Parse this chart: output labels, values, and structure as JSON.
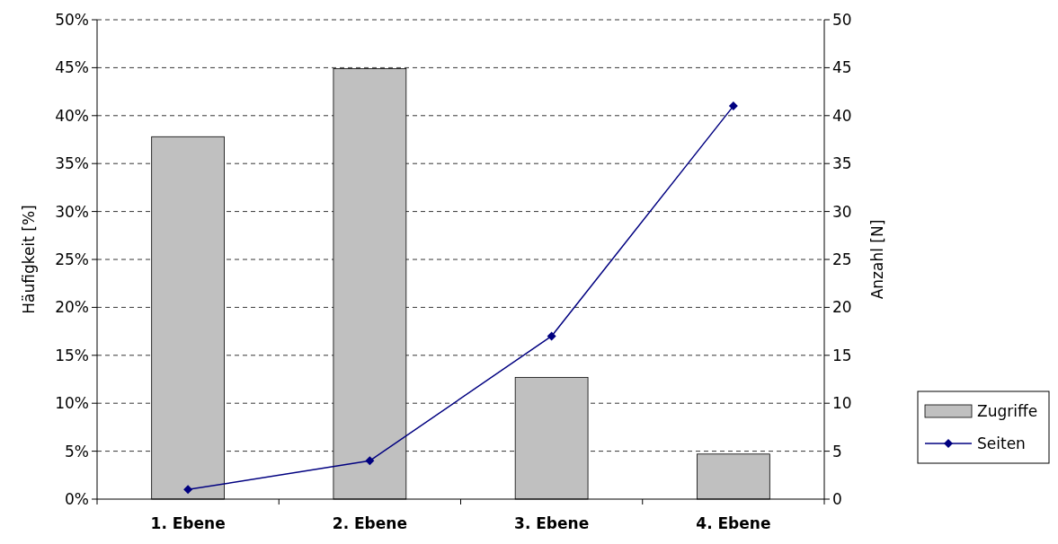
{
  "chart_data": {
    "type": "bar",
    "categories": [
      "1. Ebene",
      "2. Ebene",
      "3. Ebene",
      "4. Ebene"
    ],
    "series": [
      {
        "name": "Zugriffe",
        "color": "#c0c0c0",
        "values": [
          37.8,
          44.9,
          12.7,
          4.7
        ]
      },
      {
        "name": "Seiten",
        "type": "line",
        "axis": "y2",
        "color": "#000080",
        "marker": "diamond",
        "values": [
          1,
          4,
          17,
          41
        ]
      }
    ],
    "ylabel": "Häufigkeit [%]",
    "y2label": "Anzahl [N]",
    "ylim": [
      0,
      50
    ],
    "yticks": [
      {
        "value": 0,
        "label": "0%"
      },
      {
        "value": 5,
        "label": "5%"
      },
      {
        "value": 10,
        "label": "10%"
      },
      {
        "value": 15,
        "label": "15%"
      },
      {
        "value": 20,
        "label": "20%"
      },
      {
        "value": 25,
        "label": "25%"
      },
      {
        "value": 30,
        "label": "30%"
      },
      {
        "value": 35,
        "label": "35%"
      },
      {
        "value": 40,
        "label": "40%"
      },
      {
        "value": 45,
        "label": "45%"
      },
      {
        "value": 50,
        "label": "50%"
      }
    ],
    "y2lim": [
      0,
      50
    ],
    "y2ticks": [
      0,
      5,
      10,
      15,
      20,
      25,
      30,
      35,
      40,
      45,
      50
    ],
    "grid": "y",
    "legend": "right"
  }
}
